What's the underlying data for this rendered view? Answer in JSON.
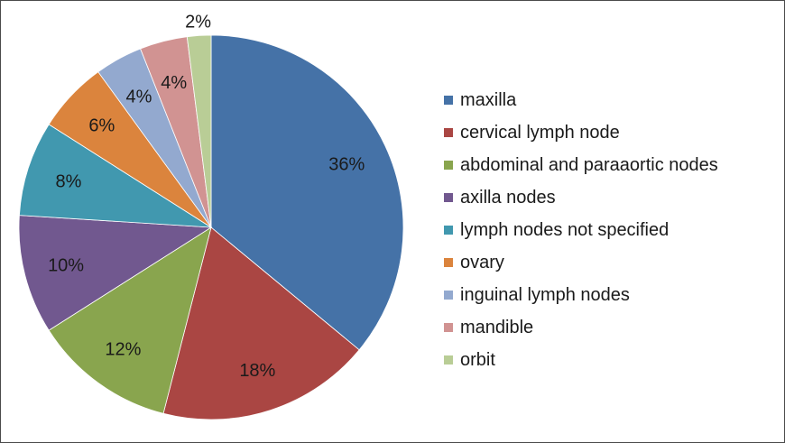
{
  "chart_data": {
    "type": "pie",
    "title": "",
    "legend_position": "right",
    "start": "top",
    "direction": "clockwise",
    "slices": [
      {
        "name": "maxilla",
        "value": 36,
        "label": "36%",
        "color": "#4572A7"
      },
      {
        "name": "cervical lymph node",
        "value": 18,
        "label": "18%",
        "color": "#AA4643"
      },
      {
        "name": "abdominal and paraaortic nodes",
        "value": 12,
        "label": "12%",
        "color": "#89A54E"
      },
      {
        "name": "axilla nodes",
        "value": 10,
        "label": "10%",
        "color": "#71588F"
      },
      {
        "name": "lymph nodes not specified",
        "value": 8,
        "label": "8%",
        "color": "#4198AF"
      },
      {
        "name": "ovary",
        "value": 6,
        "label": "6%",
        "color": "#DB843D"
      },
      {
        "name": "inguinal lymph nodes",
        "value": 4,
        "label": "4%",
        "color": "#93A9CF"
      },
      {
        "name": "mandible",
        "value": 4,
        "label": "4%",
        "color": "#D19392"
      },
      {
        "name": "orbit",
        "value": 2,
        "label": "2%",
        "color": "#B9CD96"
      }
    ]
  }
}
